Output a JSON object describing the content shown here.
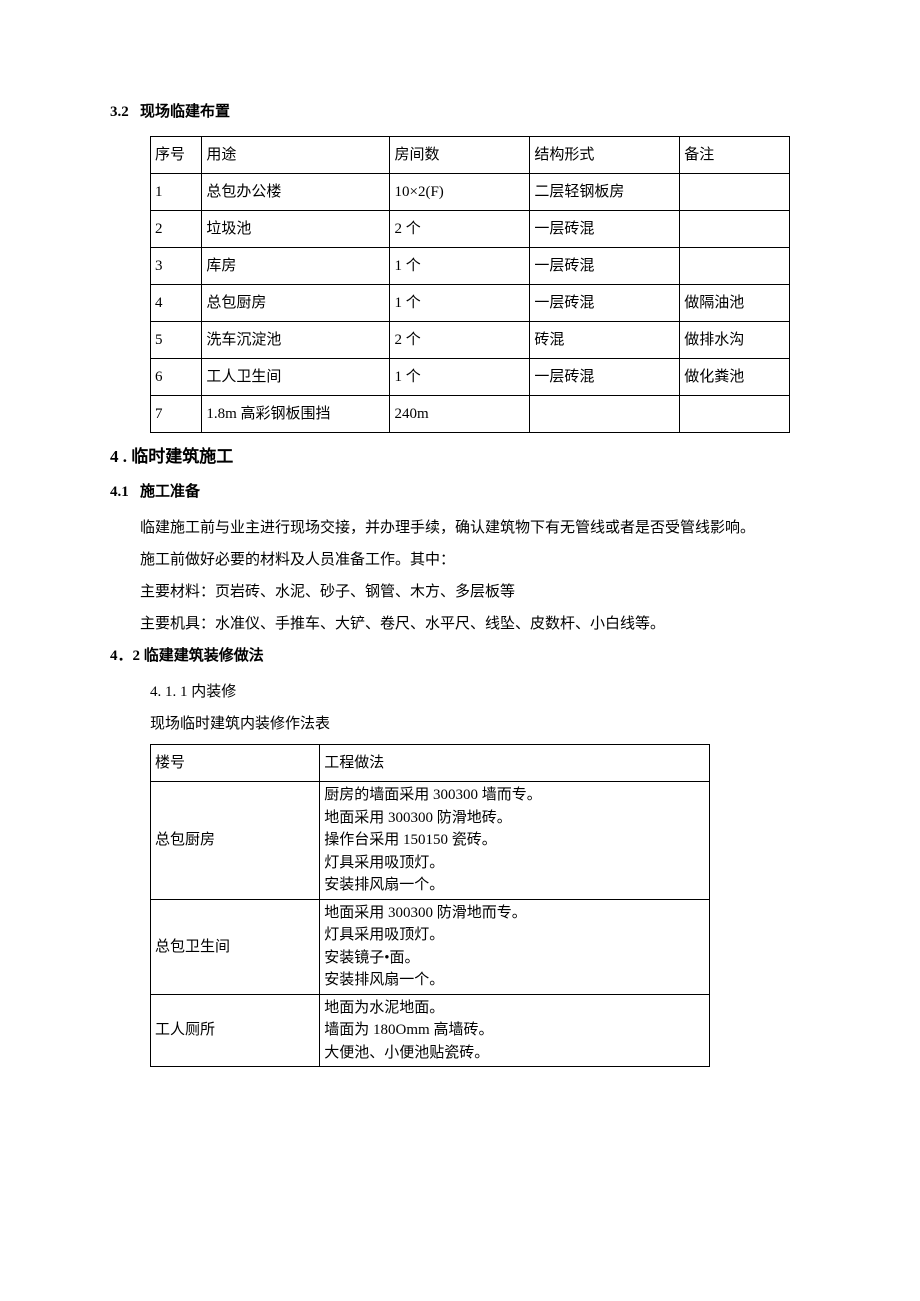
{
  "sec32": {
    "num": "3.2",
    "title": "现场临建布置",
    "table": {
      "headers": [
        "序号",
        "用途",
        "房间数",
        "结构形式",
        "备注"
      ],
      "rows": [
        [
          "1",
          "总包办公楼",
          "10×2(F)",
          "二层轻钢板房",
          ""
        ],
        [
          "2",
          "垃圾池",
          "2 个",
          "一层砖混",
          ""
        ],
        [
          "3",
          "库房",
          "1 个",
          "一层砖混",
          ""
        ],
        [
          "4",
          "总包厨房",
          "1 个",
          "一层砖混",
          "做隔油池"
        ],
        [
          "5",
          "洗车沉淀池",
          "2 个",
          "砖混",
          "做排水沟"
        ],
        [
          "6",
          "工人卫生间",
          "1 个",
          "一层砖混",
          "做化粪池"
        ],
        [
          "7",
          "1.8m 高彩钢板围挡",
          "240m",
          "",
          ""
        ]
      ]
    }
  },
  "sec4": {
    "num": "4 .",
    "title": "临时建筑施工"
  },
  "sec41": {
    "num": "4.1",
    "title": "施工准备",
    "p1": "临建施工前与业主进行现场交接，并办理手续，确认建筑物下有无管线或者是否受管线影响。",
    "p2": "施工前做好必要的材料及人员准备工作。其中：",
    "p3": "主要材料：页岩砖、水泥、砂子、钢管、木方、多层板等",
    "p4": "主要机具：水准仪、手推车、大铲、卷尺、水平尺、线坠、皮数杆、小白线等。"
  },
  "sec42": {
    "num": "4．2",
    "title": "临建建筑装修做法",
    "sub_num": "4. 1. 1",
    "sub_title": "内装修",
    "caption": "现场临时建筑内装修作法表",
    "table": {
      "headers": [
        "楼号",
        "工程做法"
      ],
      "rows": [
        {
          "name": "总包厨房",
          "lines": [
            "厨房的墙面采用 300300 墙而专。",
            "地面采用 300300 防滑地砖。",
            "操作台采用 150150 瓷砖。",
            "灯具采用吸顶灯。",
            "安装排风扇一个。"
          ]
        },
        {
          "name": "总包卫生间",
          "lines": [
            "地面采用 300300 防滑地而专。",
            "灯具采用吸顶灯。",
            "安装镜子•面。",
            "安装排风扇一个。"
          ]
        },
        {
          "name": "工人厕所",
          "lines": [
            "地面为水泥地面。",
            "墙面为 180Omm 高墙砖。",
            "大便池、小便池贴瓷砖。"
          ]
        }
      ]
    }
  }
}
